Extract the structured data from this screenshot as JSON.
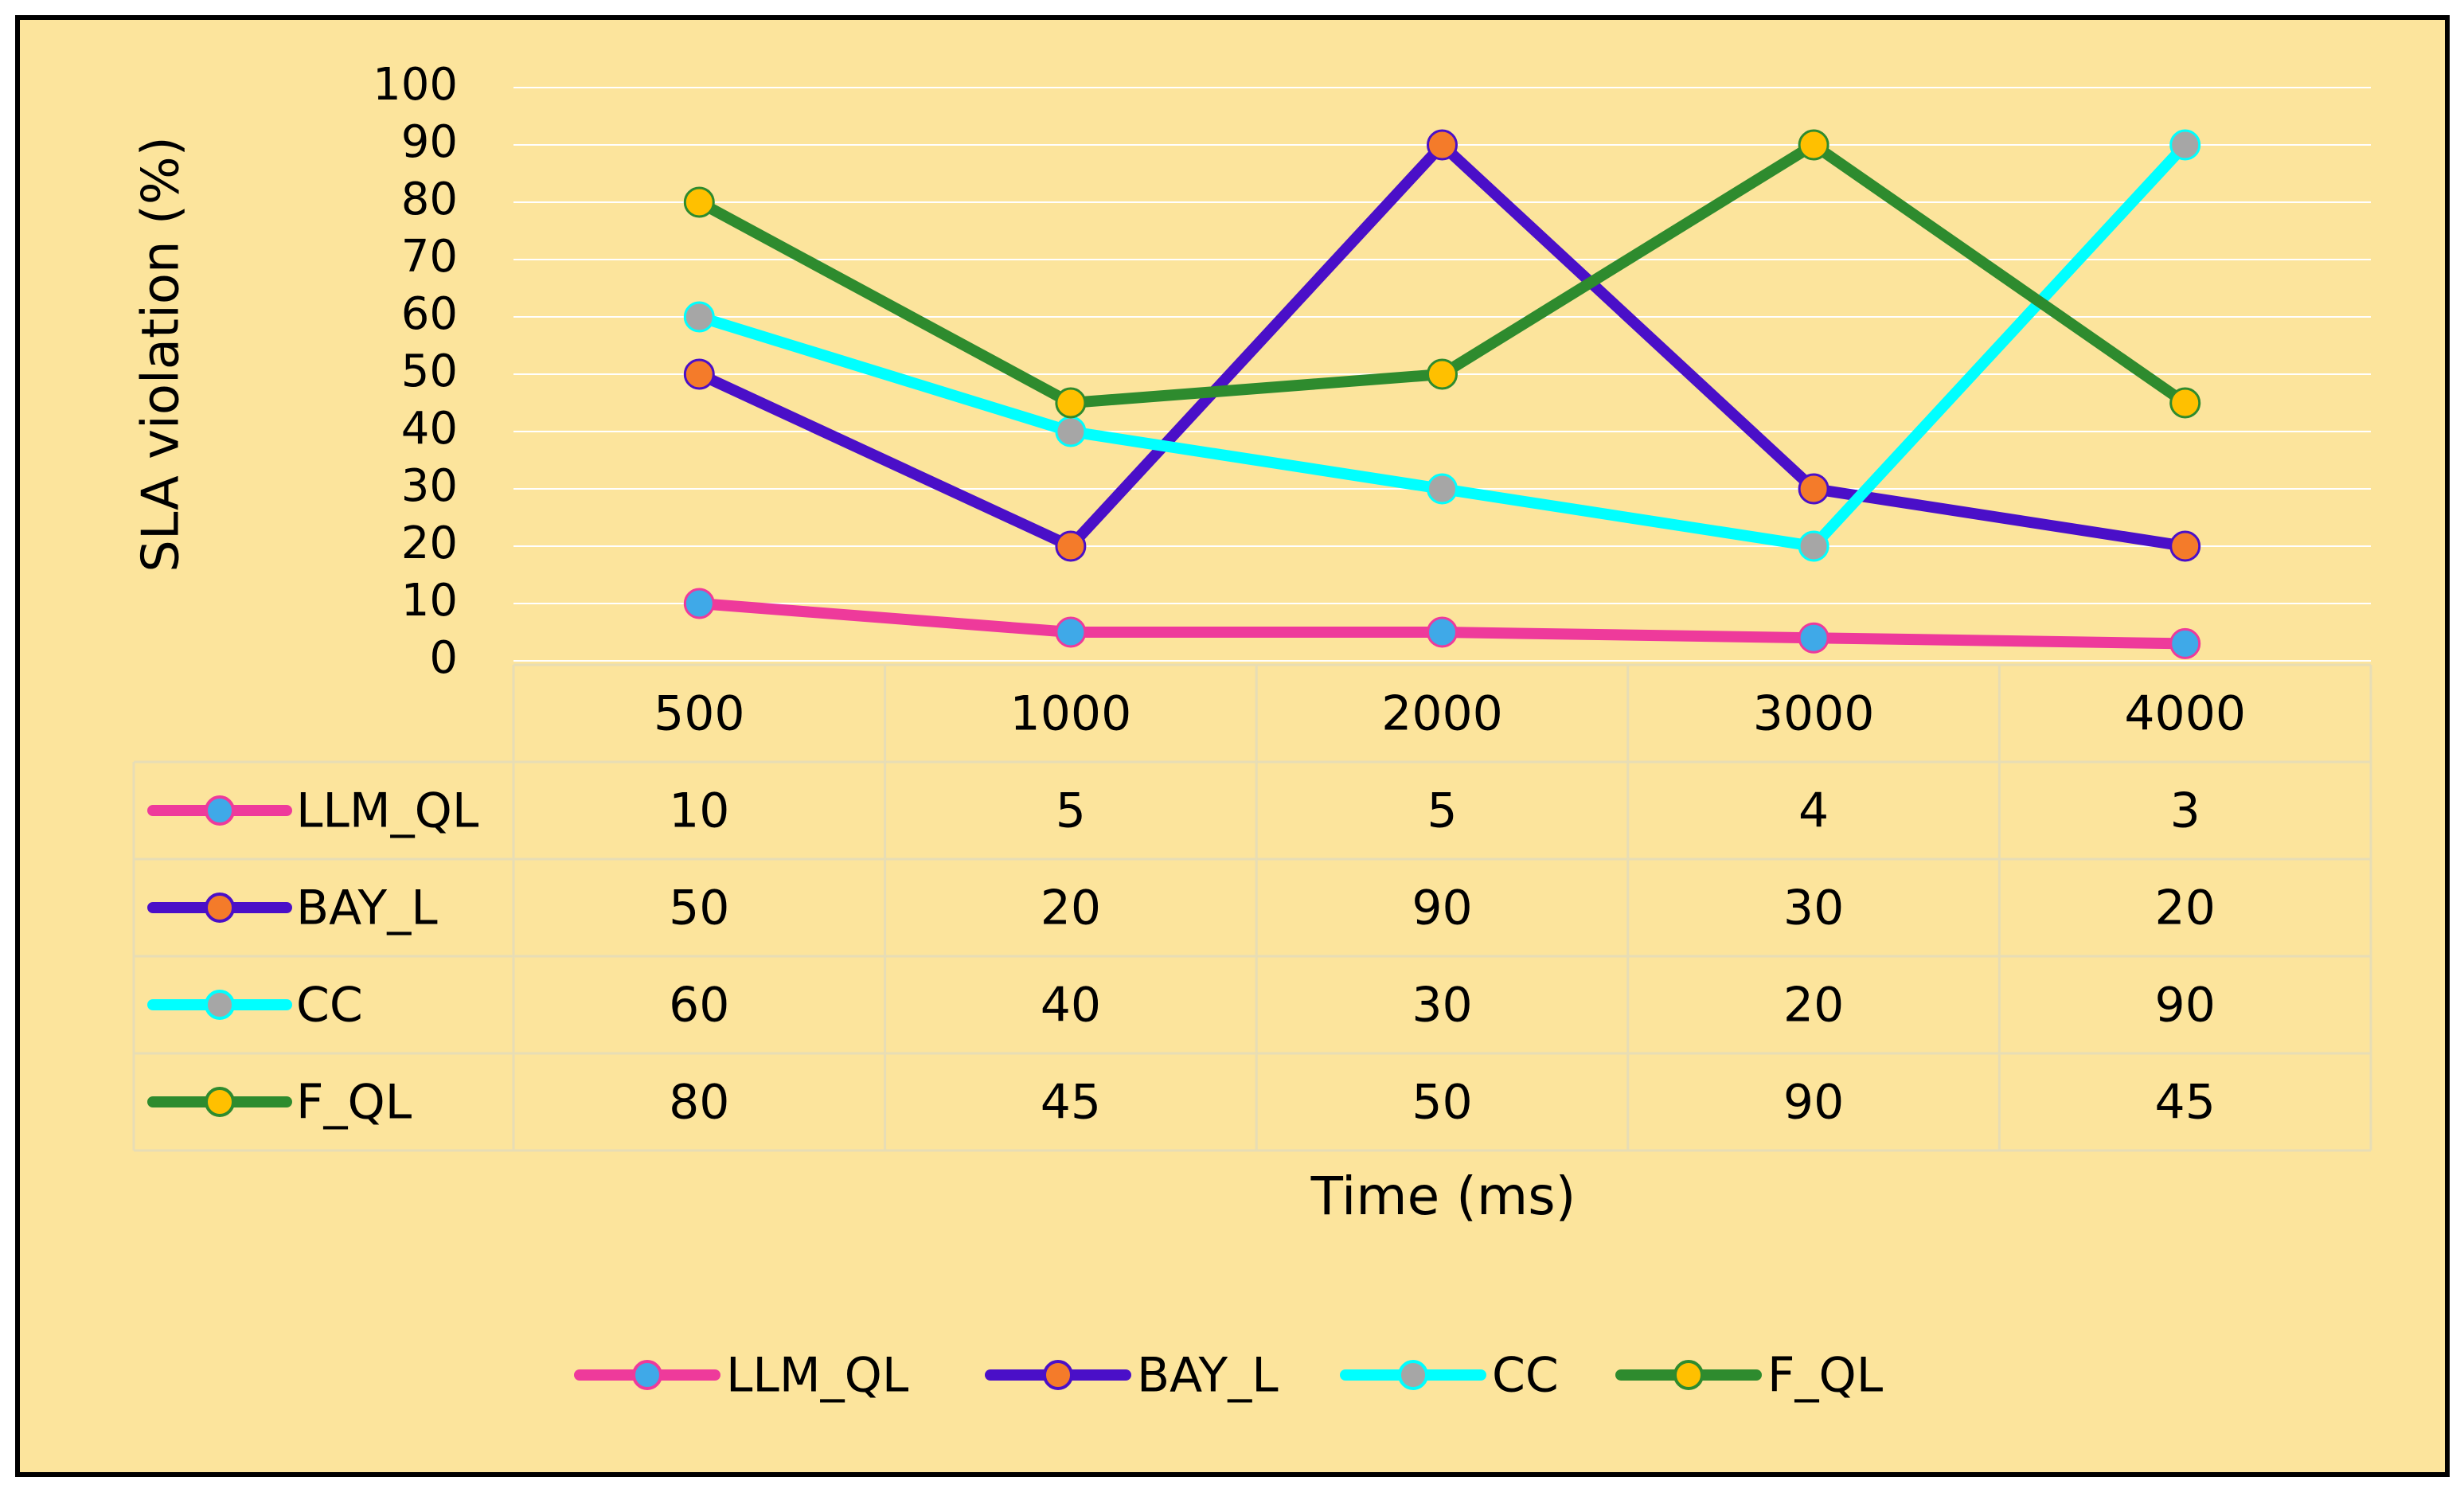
{
  "chart_data": {
    "type": "line",
    "title": "",
    "xlabel": "Time (ms)",
    "ylabel": "SLA violation (%)",
    "ylim": [
      0,
      100
    ],
    "yticks": [
      "0",
      "10",
      "20",
      "30",
      "40",
      "50",
      "60",
      "70",
      "80",
      "90",
      "100"
    ],
    "categories": [
      "500",
      "1000",
      "2000",
      "3000",
      "4000"
    ],
    "gridlines": true,
    "data_table": true,
    "legend_position": "bottom",
    "series": [
      {
        "name": "LLM_QL",
        "values": [
          10,
          5,
          5,
          4,
          3
        ],
        "line_color": "#EE3A9B",
        "marker_color": "#3FA9E8"
      },
      {
        "name": "BAY_L",
        "values": [
          50,
          20,
          90,
          30,
          20
        ],
        "line_color": "#4A0FC8",
        "marker_color": "#F47B2A"
      },
      {
        "name": "CC",
        "values": [
          60,
          40,
          30,
          20,
          90
        ],
        "line_color": "#00FFFF",
        "marker_color": "#A6A6A6"
      },
      {
        "name": "F_QL",
        "values": [
          80,
          45,
          50,
          90,
          45
        ],
        "line_color": "#2E8B2E",
        "marker_color": "#FFC000"
      }
    ]
  },
  "colors": {
    "background": "#FCE49C",
    "border": "#000000",
    "gridline": "#FFFFFF",
    "table_line": "#E7DDB5",
    "text": "#000000"
  }
}
